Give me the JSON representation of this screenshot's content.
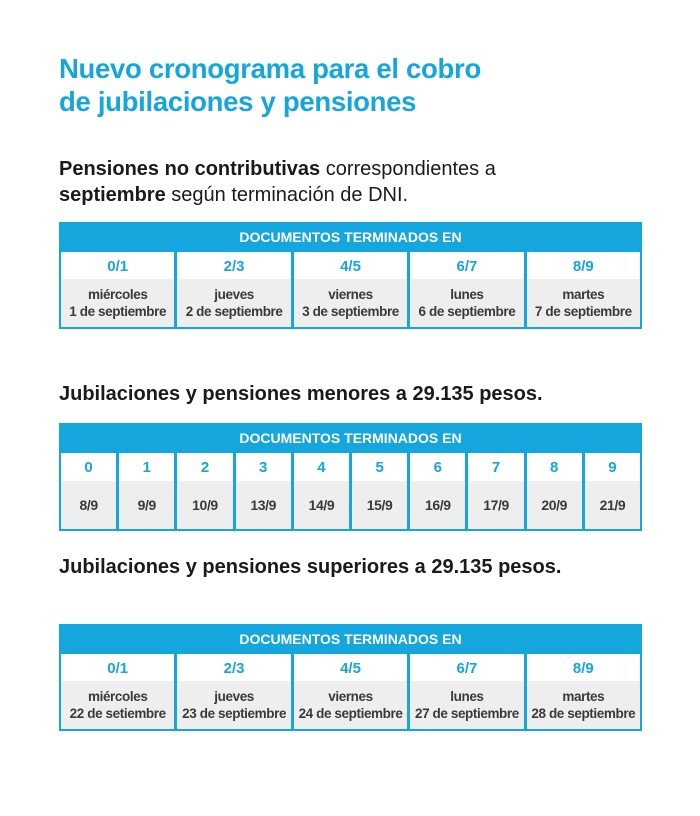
{
  "title": {
    "line1": "Nuevo cronograma para el cobro",
    "line2": "de jubilaciones y pensiones"
  },
  "subtitle": {
    "part1_bold": "Pensiones no contributivas",
    "part2": " correspondientes a",
    "part3_bold": "septiembre",
    "part4": " según terminación de DNI."
  },
  "section2_title": "Jubilaciones y pensiones menores a 29.135 pesos.",
  "section3_title": "Jubilaciones y pensiones superiores a 29.135 pesos.",
  "table1": {
    "header": "DOCUMENTOS TERMINADOS EN",
    "columns": [
      {
        "digits": "0/1",
        "day": "miércoles",
        "date": "1 de septiembre"
      },
      {
        "digits": "2/3",
        "day": "jueves",
        "date": "2 de septiembre"
      },
      {
        "digits": "4/5",
        "day": "viernes",
        "date": "3 de septiembre"
      },
      {
        "digits": "6/7",
        "day": "lunes",
        "date": "6 de septiembre"
      },
      {
        "digits": "8/9",
        "day": "martes",
        "date": "7 de septiembre"
      }
    ]
  },
  "table2": {
    "header": "DOCUMENTOS TERMINADOS EN",
    "columns": [
      {
        "digit": "0",
        "date": "8/9"
      },
      {
        "digit": "1",
        "date": "9/9"
      },
      {
        "digit": "2",
        "date": "10/9"
      },
      {
        "digit": "3",
        "date": "13/9"
      },
      {
        "digit": "4",
        "date": "14/9"
      },
      {
        "digit": "5",
        "date": "15/9"
      },
      {
        "digit": "6",
        "date": "16/9"
      },
      {
        "digit": "7",
        "date": "17/9"
      },
      {
        "digit": "8",
        "date": "20/9"
      },
      {
        "digit": "9",
        "date": "21/9"
      }
    ]
  },
  "table3": {
    "header": "DOCUMENTOS TERMINADOS EN",
    "columns": [
      {
        "digits": "0/1",
        "day": "miércoles",
        "date": "22 de setiembre"
      },
      {
        "digits": "2/3",
        "day": "jueves",
        "date": "23 de septiembre"
      },
      {
        "digits": "4/5",
        "day": "viernes",
        "date": "24 de septiembre"
      },
      {
        "digits": "6/7",
        "day": "lunes",
        "date": "27 de septiembre"
      },
      {
        "digits": "8/9",
        "day": "martes",
        "date": "28 de septiembre"
      }
    ]
  },
  "colors": {
    "accent": "#14a6dc",
    "text": "#1a1a1a",
    "cell_bg": "#eeeeee"
  }
}
